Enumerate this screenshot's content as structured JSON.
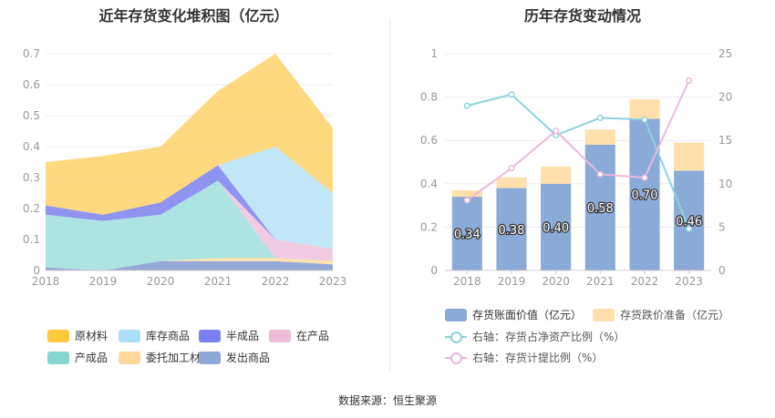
{
  "source": "数据来源：恒生聚源",
  "chart_data": [
    {
      "type": "area",
      "title": "近年存货变化堆积图（亿元）",
      "x": [
        "2018",
        "2019",
        "2020",
        "2021",
        "2022",
        "2023"
      ],
      "ylim": [
        0,
        0.7
      ],
      "yticks": [
        "0",
        "0.1",
        "0.2",
        "0.3",
        "0.4",
        "0.5",
        "0.6",
        "0.7"
      ],
      "stacked": true,
      "grid": true,
      "legend_position": "bottom",
      "series": [
        {
          "name": "发出商品",
          "color": "#8fa3d4",
          "values": [
            0.01,
            0.0,
            0.03,
            0.03,
            0.03,
            0.02
          ]
        },
        {
          "name": "委托加工材料",
          "color": "#ffe0a8",
          "values": [
            0.0,
            0.0,
            0.0,
            0.01,
            0.01,
            0.01
          ]
        },
        {
          "name": "产成品",
          "color": "#a9e3e0",
          "values": [
            0.17,
            0.16,
            0.15,
            0.25,
            0.0,
            0.0
          ]
        },
        {
          "name": "在产品",
          "color": "#f0c8e0",
          "values": [
            0.0,
            0.0,
            0.0,
            0.0,
            0.06,
            0.04
          ]
        },
        {
          "name": "半成品",
          "color": "#8a8ef0",
          "values": [
            0.03,
            0.02,
            0.04,
            0.05,
            0.0,
            0.0
          ]
        },
        {
          "name": "库存商品",
          "color": "#bfe6f8",
          "values": [
            0.0,
            0.0,
            0.0,
            0.0,
            0.3,
            0.18
          ]
        },
        {
          "name": "原材料",
          "color": "#ffd779",
          "values": [
            0.14,
            0.19,
            0.18,
            0.24,
            0.3,
            0.21
          ]
        }
      ],
      "legend": [
        {
          "name": "原材料",
          "color": "#ffc83d"
        },
        {
          "name": "库存商品",
          "color": "#a9dff7"
        },
        {
          "name": "半成品",
          "color": "#7b80f0"
        },
        {
          "name": "在产品",
          "color": "#eebbd8"
        },
        {
          "name": "产成品",
          "color": "#84d6d2"
        },
        {
          "name": "委托加工材料",
          "color": "#ffd99a"
        },
        {
          "name": "发出商品",
          "color": "#8fa8d8"
        }
      ]
    },
    {
      "type": "bar",
      "title": "历年存货变动情况",
      "x": [
        "2018",
        "2019",
        "2020",
        "2021",
        "2022",
        "2023"
      ],
      "ylim": [
        0,
        1
      ],
      "yticks": [
        "0",
        "0.2",
        "0.4",
        "0.6",
        "0.8",
        "1"
      ],
      "y2lim": [
        0,
        25
      ],
      "y2ticks": [
        "0",
        "5",
        "10",
        "15",
        "20",
        "25"
      ],
      "grid": true,
      "legend_position": "bottom",
      "series": [
        {
          "name": "存货账面价值（亿元）",
          "type": "bar",
          "stack": true,
          "color": "#8aaad8",
          "values": [
            0.34,
            0.38,
            0.4,
            0.58,
            0.7,
            0.46
          ],
          "labels": [
            "0.34",
            "0.38",
            "0.40",
            "0.58",
            "0.70",
            "0.46"
          ]
        },
        {
          "name": "存货跌价准备（亿元）",
          "type": "bar",
          "stack": true,
          "color": "#ffe0ac",
          "values": [
            0.03,
            0.05,
            0.08,
            0.07,
            0.09,
            0.13
          ]
        },
        {
          "name": "右轴：存货占净资产比例（%）",
          "type": "line",
          "axis": "right",
          "color": "#8ad4dc",
          "values": [
            19.0,
            20.3,
            15.6,
            17.6,
            17.4,
            4.8
          ]
        },
        {
          "name": "右轴：存货计提比例（%）",
          "type": "line",
          "axis": "right",
          "color": "#ebb8dc",
          "values": [
            8.1,
            11.8,
            16.1,
            11.1,
            10.7,
            21.9
          ]
        }
      ]
    }
  ]
}
